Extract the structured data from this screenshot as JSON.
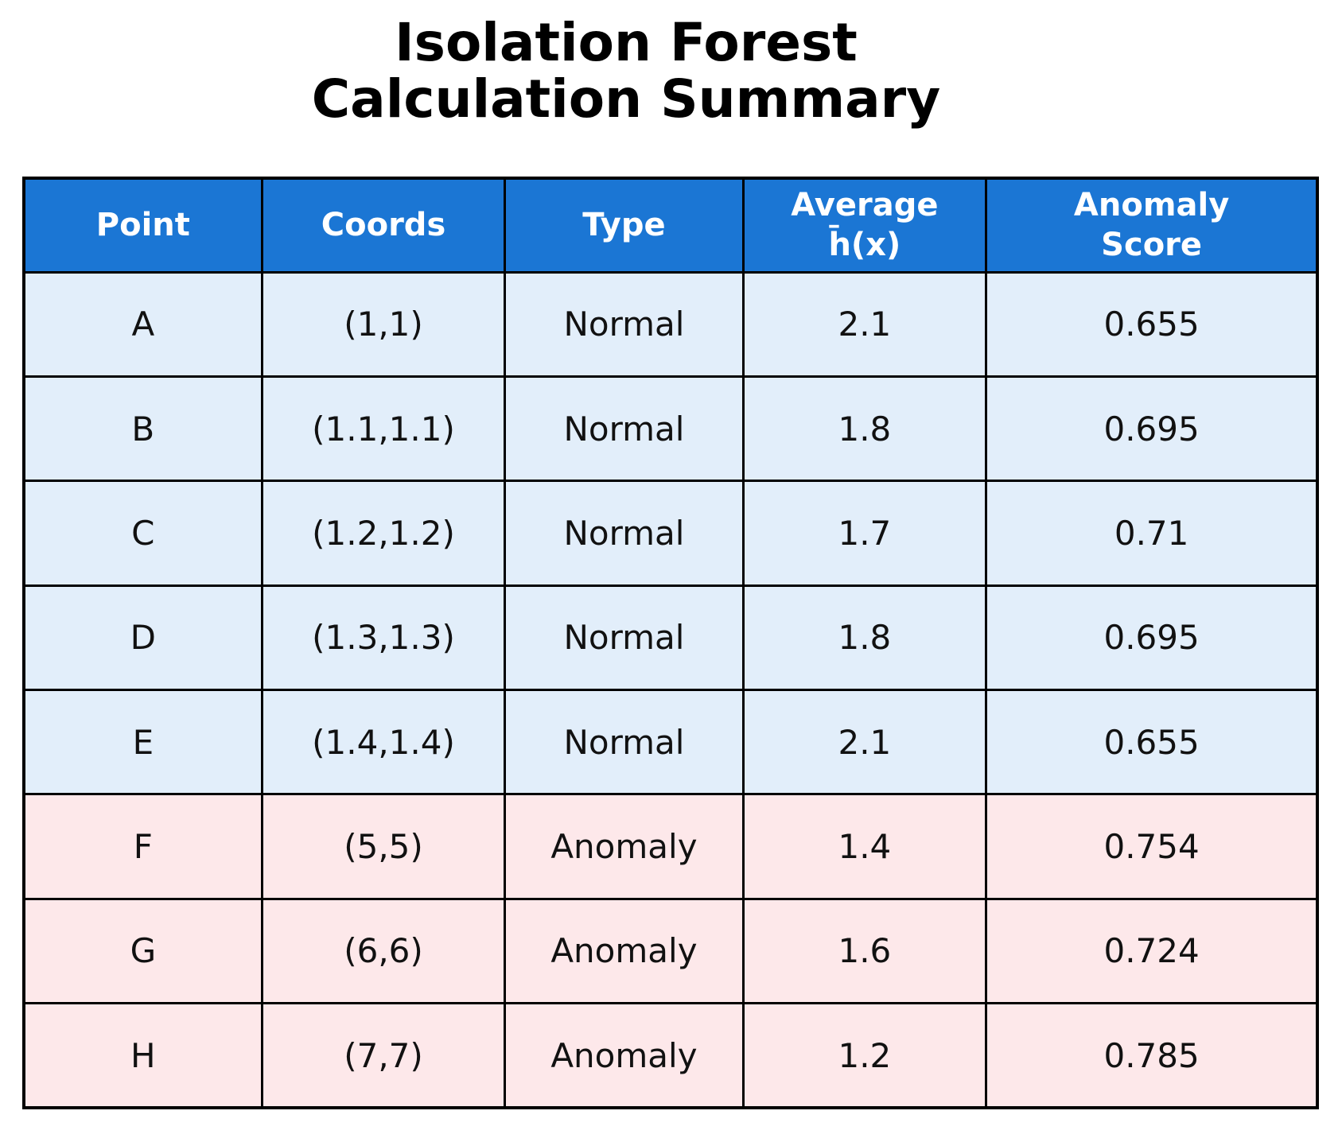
{
  "title": "Isolation Forest\nCalculation Summary",
  "colors": {
    "header_bg": "#1b76d4",
    "header_text": "#ffffff",
    "normal_row_bg": "#e2eefa",
    "anomaly_row_bg": "#fde8ea",
    "border_color": "#000000"
  },
  "table": {
    "headers": [
      "Point",
      "Coords",
      "Type",
      "Average\nh̄(x)",
      "Anomaly\nScore"
    ],
    "rows": [
      {
        "point": "A",
        "coords": "(1,1)",
        "type": "Normal",
        "avg": "2.1",
        "score": "0.655",
        "row_class": "normal"
      },
      {
        "point": "B",
        "coords": "(1.1,1.1)",
        "type": "Normal",
        "avg": "1.8",
        "score": "0.695",
        "row_class": "normal"
      },
      {
        "point": "C",
        "coords": "(1.2,1.2)",
        "type": "Normal",
        "avg": "1.7",
        "score": "0.71",
        "row_class": "normal"
      },
      {
        "point": "D",
        "coords": "(1.3,1.3)",
        "type": "Normal",
        "avg": "1.8",
        "score": "0.695",
        "row_class": "normal"
      },
      {
        "point": "E",
        "coords": "(1.4,1.4)",
        "type": "Normal",
        "avg": "2.1",
        "score": "0.655",
        "row_class": "normal"
      },
      {
        "point": "F",
        "coords": "(5,5)",
        "type": "Anomaly",
        "avg": "1.4",
        "score": "0.754",
        "row_class": "anomaly"
      },
      {
        "point": "G",
        "coords": "(6,6)",
        "type": "Anomaly",
        "avg": "1.6",
        "score": "0.724",
        "row_class": "anomaly"
      },
      {
        "point": "H",
        "coords": "(7,7)",
        "type": "Anomaly",
        "avg": "1.2",
        "score": "0.785",
        "row_class": "anomaly"
      }
    ]
  },
  "chart_data": {
    "type": "table",
    "title": "Isolation Forest Calculation Summary",
    "columns": [
      "Point",
      "Coords",
      "Type",
      "Average h̄(x)",
      "Anomaly Score"
    ],
    "rows": [
      [
        "A",
        "(1,1)",
        "Normal",
        2.1,
        0.655
      ],
      [
        "B",
        "(1.1,1.1)",
        "Normal",
        1.8,
        0.695
      ],
      [
        "C",
        "(1.2,1.2)",
        "Normal",
        1.7,
        0.71
      ],
      [
        "D",
        "(1.3,1.3)",
        "Normal",
        1.8,
        0.695
      ],
      [
        "E",
        "(1.4,1.4)",
        "Normal",
        2.1,
        0.655
      ],
      [
        "F",
        "(5,5)",
        "Anomaly",
        1.4,
        0.754
      ],
      [
        "G",
        "(6,6)",
        "Anomaly",
        1.6,
        0.724
      ],
      [
        "H",
        "(7,7)",
        "Anomaly",
        1.2,
        0.785
      ]
    ],
    "legend_position": "none",
    "grid": true,
    "notes": "Rows A-E highlighted light blue (Normal); rows F-H highlighted light pink (Anomaly); header row blue with white bold text"
  }
}
